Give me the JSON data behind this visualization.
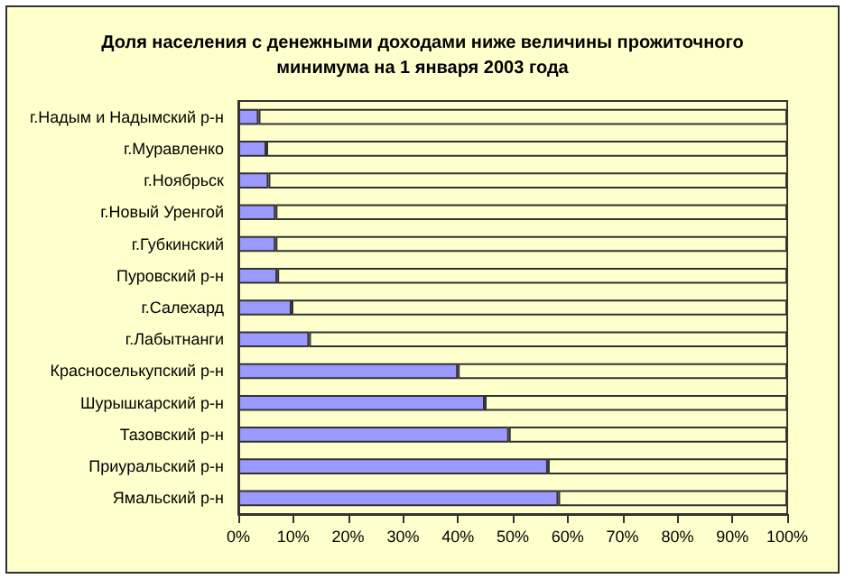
{
  "chart_data": {
    "type": "bar",
    "orientation": "horizontal",
    "stacked": true,
    "title": "Доля населения с денежными доходами ниже величины прожиточного\nминимума на 1 января 2003 года",
    "categories": [
      "г.Надым и Надымский р-н",
      "г.Муравленко",
      "г.Ноябрьск",
      "г.Новый Уренгой",
      "г.Губкинский",
      "Пуровский р-н",
      "г.Салехард",
      "г.Лабытнанги",
      "Красноселькупский р-н",
      "Шурышкарский р-н",
      "Тазовский р-н",
      "Приуральский р-н",
      "Ямальский р-н"
    ],
    "series": [
      {
        "color": "#9999ff",
        "values": [
          3.7,
          5.1,
          5.5,
          6.8,
          6.8,
          7.1,
          9.7,
          12.9,
          40.0,
          44.9,
          49.3,
          56.4,
          58.3
        ]
      },
      {
        "color": "#ffffcc",
        "values": [
          96.3,
          94.9,
          94.5,
          93.2,
          93.2,
          92.9,
          90.3,
          87.1,
          60.0,
          55.1,
          50.7,
          43.6,
          41.7
        ]
      }
    ],
    "xlim": [
      0,
      100
    ],
    "xticks": [
      {
        "value": 0,
        "label": "0%"
      },
      {
        "value": 10,
        "label": "10%"
      },
      {
        "value": 20,
        "label": "20%"
      },
      {
        "value": 30,
        "label": "30%"
      },
      {
        "value": 40,
        "label": "40%"
      },
      {
        "value": 50,
        "label": "50%"
      },
      {
        "value": 60,
        "label": "60%"
      },
      {
        "value": 70,
        "label": "70%"
      },
      {
        "value": 80,
        "label": "80%"
      },
      {
        "value": 90,
        "label": "90%"
      },
      {
        "value": 100,
        "label": "100%"
      }
    ],
    "grid": false
  }
}
